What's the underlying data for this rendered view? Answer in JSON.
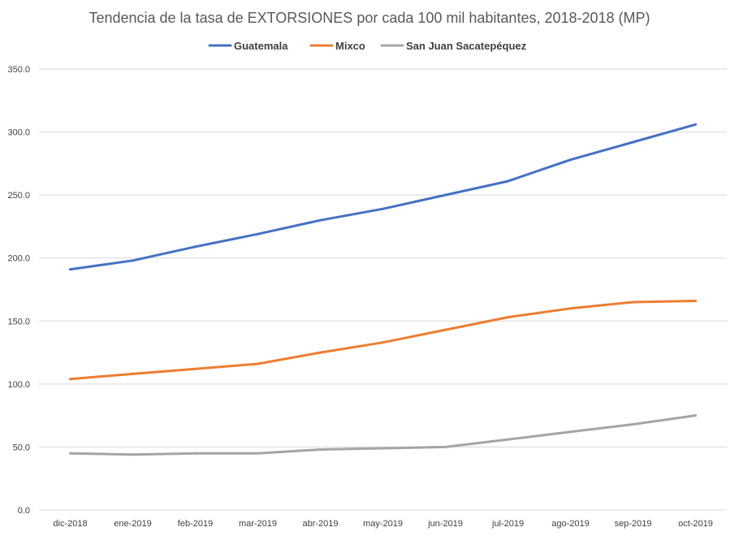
{
  "chart_data": {
    "type": "line",
    "title": "Tendencia de la tasa de EXTORSIONES por cada 100 mil habitantes, 2018-2018 (MP)",
    "xlabel": "",
    "ylabel": "",
    "categories": [
      "dic-2018",
      "ene-2019",
      "feb-2019",
      "mar-2019",
      "abr-2019",
      "may-2019",
      "jun-2019",
      "jul-2019",
      "ago-2019",
      "sep-2019",
      "oct-2019"
    ],
    "ylim": [
      0,
      350
    ],
    "yticks": [
      "0.0",
      "50.0",
      "100.0",
      "150.0",
      "200.0",
      "250.0",
      "300.0",
      "350.0"
    ],
    "grid": true,
    "legend_position": "top",
    "series": [
      {
        "name": "Guatemala",
        "color": "#4472c4",
        "values": [
          191,
          198,
          209,
          219,
          230,
          239,
          250,
          261,
          278,
          292,
          306
        ]
      },
      {
        "name": "Mixco",
        "color": "#ed7d31",
        "values": [
          104,
          108,
          112,
          116,
          125,
          133,
          143,
          153,
          160,
          165,
          166
        ]
      },
      {
        "name": "San Juan Sacatepéquez",
        "color": "#a5a5a5",
        "values": [
          45,
          44,
          45,
          45,
          48,
          49,
          50,
          56,
          62,
          68,
          75
        ]
      }
    ]
  }
}
